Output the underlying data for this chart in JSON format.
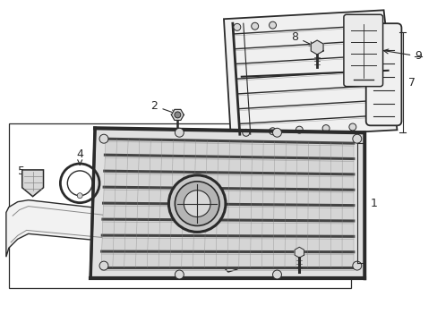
{
  "bg_color": "#ffffff",
  "line_color": "#2a2a2a",
  "light_gray": "#d8d8d8",
  "medium_gray": "#888888",
  "dark_gray": "#444444",
  "fill_gray": "#ebebeb",
  "shadow_gray": "#aaaaaa",
  "grille_fill": "#e0e0e0",
  "vent_fill": "#f0f0f0"
}
